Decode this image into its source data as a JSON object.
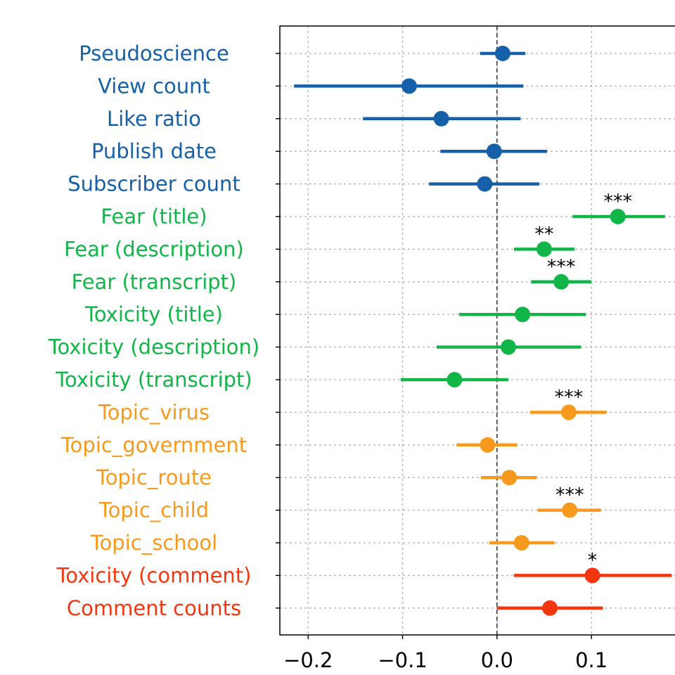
{
  "chart_data": {
    "type": "scatter",
    "subtype": "coefficient-plot-with-confidence-intervals",
    "title": "",
    "xlabel": "",
    "ylabel": "",
    "xlim": [
      -0.23,
      0.19
    ],
    "x_ticks": [
      -0.2,
      -0.1,
      0.0,
      0.1
    ],
    "x_tick_labels": [
      "−0.2",
      "−0.1",
      "0.0",
      "0.1"
    ],
    "grid": true,
    "zero_line": "dashed vertical line at 0",
    "legend": "none",
    "group_colors": {
      "video_metadata": "#1560a8",
      "fear_toxicity": "#12b548",
      "topics": "#f7991c",
      "comments": "#f2370f"
    },
    "rows": [
      {
        "label": "Pseudoscience",
        "group": "video_metadata",
        "estimate": 0.006,
        "ci_low": -0.018,
        "ci_high": 0.03,
        "sig": ""
      },
      {
        "label": "View count",
        "group": "video_metadata",
        "estimate": -0.093,
        "ci_low": -0.215,
        "ci_high": 0.028,
        "sig": ""
      },
      {
        "label": "Like ratio",
        "group": "video_metadata",
        "estimate": -0.059,
        "ci_low": -0.142,
        "ci_high": 0.025,
        "sig": ""
      },
      {
        "label": "Publish date",
        "group": "video_metadata",
        "estimate": -0.003,
        "ci_low": -0.06,
        "ci_high": 0.053,
        "sig": ""
      },
      {
        "label": "Subscriber count",
        "group": "video_metadata",
        "estimate": -0.013,
        "ci_low": -0.072,
        "ci_high": 0.045,
        "sig": ""
      },
      {
        "label": "Fear (title)",
        "group": "fear_toxicity",
        "estimate": 0.128,
        "ci_low": 0.08,
        "ci_high": 0.178,
        "sig": "***"
      },
      {
        "label": "Fear (description)",
        "group": "fear_toxicity",
        "estimate": 0.05,
        "ci_low": 0.018,
        "ci_high": 0.082,
        "sig": "**"
      },
      {
        "label": "Fear (transcript)",
        "group": "fear_toxicity",
        "estimate": 0.068,
        "ci_low": 0.036,
        "ci_high": 0.1,
        "sig": "***"
      },
      {
        "label": "Toxicity (title)",
        "group": "fear_toxicity",
        "estimate": 0.027,
        "ci_low": -0.04,
        "ci_high": 0.094,
        "sig": ""
      },
      {
        "label": "Toxicity (description)",
        "group": "fear_toxicity",
        "estimate": 0.012,
        "ci_low": -0.064,
        "ci_high": 0.089,
        "sig": ""
      },
      {
        "label": "Toxicity (transcript)",
        "group": "fear_toxicity",
        "estimate": -0.045,
        "ci_low": -0.102,
        "ci_high": 0.012,
        "sig": ""
      },
      {
        "label": "Topic_virus",
        "group": "topics",
        "estimate": 0.076,
        "ci_low": 0.035,
        "ci_high": 0.116,
        "sig": "***"
      },
      {
        "label": "Topic_government",
        "group": "topics",
        "estimate": -0.01,
        "ci_low": -0.043,
        "ci_high": 0.021,
        "sig": ""
      },
      {
        "label": "Topic_route",
        "group": "topics",
        "estimate": 0.013,
        "ci_low": -0.017,
        "ci_high": 0.042,
        "sig": ""
      },
      {
        "label": "Topic_child",
        "group": "topics",
        "estimate": 0.077,
        "ci_low": 0.043,
        "ci_high": 0.11,
        "sig": "***"
      },
      {
        "label": "Topic_school",
        "group": "topics",
        "estimate": 0.026,
        "ci_low": -0.008,
        "ci_high": 0.061,
        "sig": ""
      },
      {
        "label": "Toxicity (comment)",
        "group": "comments",
        "estimate": 0.101,
        "ci_low": 0.018,
        "ci_high": 0.185,
        "sig": "*"
      },
      {
        "label": "Comment counts",
        "group": "comments",
        "estimate": 0.056,
        "ci_low": 0.0,
        "ci_high": 0.112,
        "sig": ""
      }
    ]
  }
}
